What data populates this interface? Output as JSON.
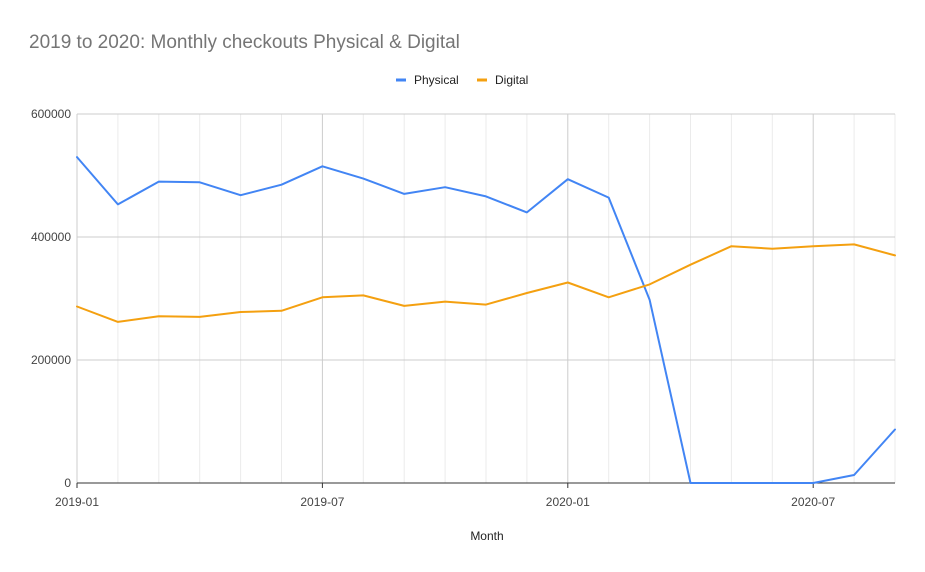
{
  "chart_data": {
    "type": "line",
    "title": "2019 to 2020: Monthly checkouts Physical & Digital",
    "xlabel": "Month",
    "ylabel": "",
    "legend_position": "top",
    "grid": true,
    "ylim": [
      0,
      600000
    ],
    "y_ticks": [
      0,
      200000,
      400000,
      600000
    ],
    "y_tick_labels": [
      "0",
      "200000",
      "400000",
      "600000"
    ],
    "x": [
      "2019-01",
      "2019-02",
      "2019-03",
      "2019-04",
      "2019-05",
      "2019-06",
      "2019-07",
      "2019-08",
      "2019-09",
      "2019-10",
      "2019-11",
      "2019-12",
      "2020-01",
      "2020-02",
      "2020-03",
      "2020-04",
      "2020-05",
      "2020-06",
      "2020-07",
      "2020-08",
      "2020-09"
    ],
    "x_tick_labels": [
      "2019-01",
      "2019-07",
      "2020-01",
      "2020-07"
    ],
    "series": [
      {
        "name": "Physical",
        "color": "#4285f4",
        "values": [
          530000,
          453000,
          490000,
          489000,
          468000,
          485000,
          515000,
          495000,
          470000,
          481000,
          466000,
          440000,
          494000,
          464000,
          298000,
          0,
          0,
          0,
          0,
          13000,
          87000
        ]
      },
      {
        "name": "Digital",
        "color": "#f4a010",
        "values": [
          287000,
          262000,
          271000,
          270000,
          278000,
          280000,
          302000,
          305000,
          288000,
          295000,
          290000,
          309000,
          326000,
          302000,
          323000,
          355000,
          385000,
          381000,
          385000,
          388000,
          370000
        ]
      }
    ]
  }
}
